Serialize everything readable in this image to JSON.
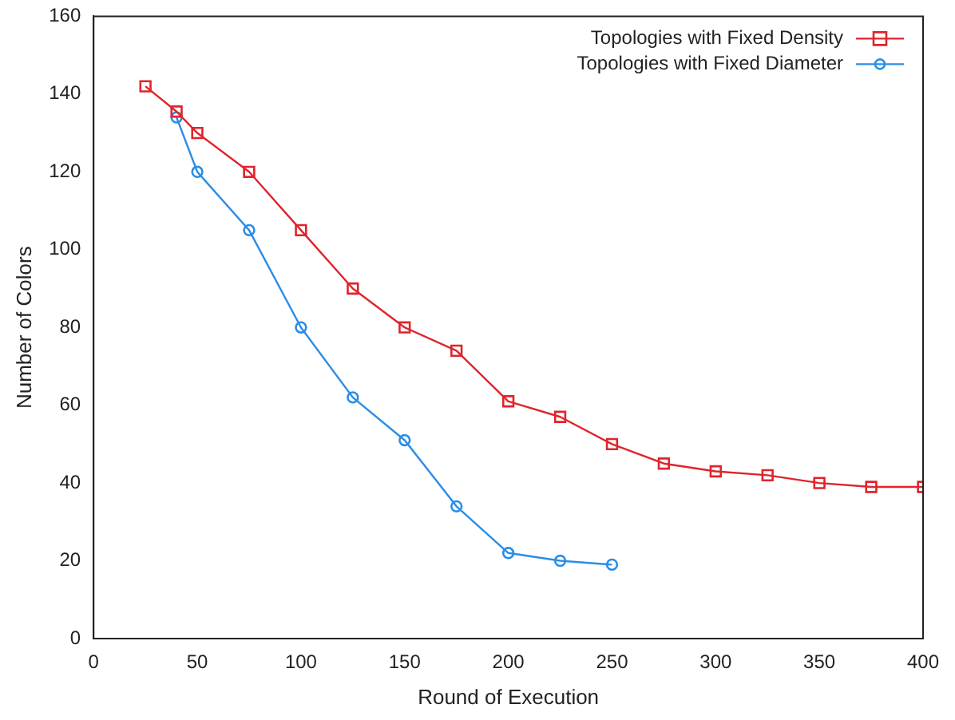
{
  "chart_data": {
    "type": "line",
    "xlabel": "Round of Execution",
    "ylabel": "Number of Colors",
    "xlim": [
      0,
      400
    ],
    "xticks": [
      0,
      50,
      100,
      150,
      200,
      250,
      300,
      350,
      400
    ],
    "ylim": [
      0,
      160
    ],
    "yticks": [
      0,
      20,
      40,
      60,
      80,
      100,
      120,
      140,
      160
    ],
    "grid": false,
    "legend": "top right",
    "series": [
      {
        "name": "Topologies with Fixed Density",
        "color": "#e0242c",
        "marker": "square",
        "x": [
          25,
          40,
          50,
          75,
          100,
          125,
          150,
          175,
          200,
          225,
          250,
          275,
          300,
          325,
          350,
          375,
          400
        ],
        "values": [
          142,
          135.5,
          130,
          120,
          105,
          90,
          80,
          74,
          61,
          57,
          50,
          45,
          43,
          42,
          40,
          39,
          39
        ]
      },
      {
        "name": "Topologies with Fixed Diameter",
        "color": "#2a8de6",
        "marker": "circle",
        "x": [
          40,
          50,
          75,
          100,
          125,
          150,
          175,
          200,
          225,
          250
        ],
        "values": [
          134,
          120,
          105,
          80,
          62,
          51,
          34,
          22,
          20,
          19
        ]
      }
    ]
  }
}
